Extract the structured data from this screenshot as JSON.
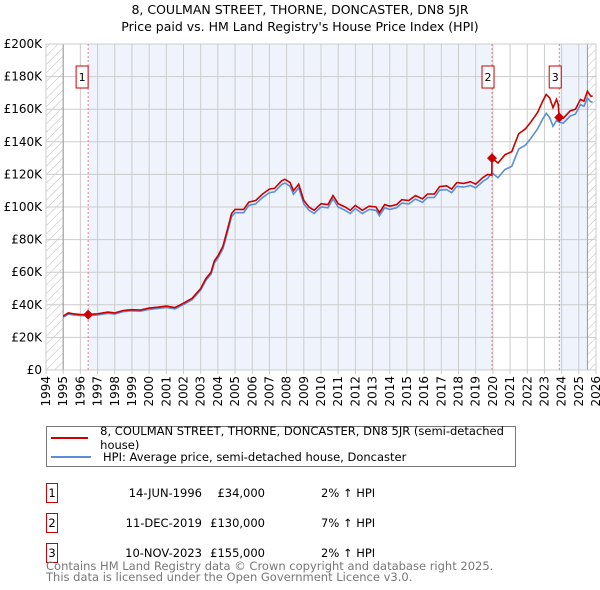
{
  "chart_data": {
    "type": "line",
    "title": "8, COULMAN STREET, THORNE, DONCASTER, DN8 5JR",
    "subtitle": "Price paid vs. HM Land Registry's House Price Index (HPI)",
    "xlim": [
      1994,
      2026
    ],
    "ylim": [
      0,
      200000
    ],
    "x_ticks": [
      "1994",
      "1995",
      "1996",
      "1997",
      "1998",
      "1999",
      "2000",
      "2001",
      "2002",
      "2003",
      "2004",
      "2005",
      "2006",
      "2007",
      "2008",
      "2009",
      "2010",
      "2011",
      "2012",
      "2013",
      "2014",
      "2015",
      "2016",
      "2017",
      "2018",
      "2019",
      "2020",
      "2021",
      "2022",
      "2023",
      "2024",
      "2025",
      "2026"
    ],
    "y_ticks": [
      {
        "v": 0,
        "label": "£0"
      },
      {
        "v": 20000,
        "label": "£20K"
      },
      {
        "v": 40000,
        "label": "£40K"
      },
      {
        "v": 60000,
        "label": "£60K"
      },
      {
        "v": 80000,
        "label": "£80K"
      },
      {
        "v": 100000,
        "label": "£100K"
      },
      {
        "v": 120000,
        "label": "£120K"
      },
      {
        "v": 140000,
        "label": "£140K"
      },
      {
        "v": 160000,
        "label": "£160K"
      },
      {
        "v": 180000,
        "label": "£180K"
      },
      {
        "v": 200000,
        "label": "£200K"
      }
    ],
    "grid": true,
    "series": [
      {
        "name": "8, COULMAN STREET, THORNE, DONCASTER, DN8 5JR (semi-detached house)",
        "color": "#cc0000",
        "points": [
          [
            1995,
            33000
          ],
          [
            1995.3,
            35000
          ],
          [
            1995.6,
            34500
          ],
          [
            1996,
            34000
          ],
          [
            1996.45,
            34000
          ],
          [
            1997,
            34500
          ],
          [
            1997.6,
            35500
          ],
          [
            1998,
            35000
          ],
          [
            1998.5,
            36500
          ],
          [
            1999,
            37000
          ],
          [
            1999.5,
            36800
          ],
          [
            2000,
            38000
          ],
          [
            2000.5,
            38500
          ],
          [
            2001,
            39200
          ],
          [
            2001.5,
            38300
          ],
          [
            2002,
            41000
          ],
          [
            2002.5,
            44000
          ],
          [
            2003,
            50000
          ],
          [
            2003.3,
            56000
          ],
          [
            2003.6,
            60000
          ],
          [
            2003.8,
            67000
          ],
          [
            2004,
            70000
          ],
          [
            2004.3,
            76000
          ],
          [
            2004.6,
            88000
          ],
          [
            2004.8,
            96000
          ],
          [
            2005,
            98500
          ],
          [
            2005.5,
            98500
          ],
          [
            2005.8,
            103000
          ],
          [
            2006.2,
            104000
          ],
          [
            2006.6,
            108000
          ],
          [
            2007,
            111000
          ],
          [
            2007.3,
            111500
          ],
          [
            2007.7,
            116000
          ],
          [
            2007.9,
            117000
          ],
          [
            2008.2,
            115000
          ],
          [
            2008.4,
            110000
          ],
          [
            2008.7,
            114000
          ],
          [
            2009,
            104000
          ],
          [
            2009.3,
            100000
          ],
          [
            2009.6,
            98000
          ],
          [
            2010,
            102000
          ],
          [
            2010.4,
            101500
          ],
          [
            2010.7,
            107000
          ],
          [
            2011,
            102000
          ],
          [
            2011.4,
            100000
          ],
          [
            2011.7,
            98000
          ],
          [
            2012,
            101000
          ],
          [
            2012.4,
            98000
          ],
          [
            2012.8,
            100500
          ],
          [
            2013.2,
            100000
          ],
          [
            2013.4,
            96500
          ],
          [
            2013.7,
            101500
          ],
          [
            2014,
            100500
          ],
          [
            2014.4,
            101500
          ],
          [
            2014.7,
            104500
          ],
          [
            2015.1,
            104000
          ],
          [
            2015.5,
            107000
          ],
          [
            2015.9,
            105000
          ],
          [
            2016.2,
            108000
          ],
          [
            2016.6,
            108000
          ],
          [
            2016.9,
            112500
          ],
          [
            2017.3,
            113000
          ],
          [
            2017.6,
            111000
          ],
          [
            2017.9,
            115000
          ],
          [
            2018.3,
            114500
          ],
          [
            2018.7,
            115500
          ],
          [
            2019,
            114000
          ],
          [
            2019.4,
            118000
          ],
          [
            2019.7,
            120000
          ],
          [
            2019.94,
            119500
          ],
          [
            2019.95,
            130000
          ],
          [
            2020.3,
            127000
          ],
          [
            2020.7,
            132000
          ],
          [
            2021.1,
            134000
          ],
          [
            2021.5,
            145000
          ],
          [
            2021.9,
            148000
          ],
          [
            2022.2,
            152000
          ],
          [
            2022.6,
            158000
          ],
          [
            2022.9,
            165000
          ],
          [
            2023.1,
            169000
          ],
          [
            2023.3,
            167000
          ],
          [
            2023.5,
            161000
          ],
          [
            2023.7,
            166000
          ],
          [
            2023.8,
            163000
          ],
          [
            2023.86,
            155000
          ],
          [
            2024.1,
            154500
          ],
          [
            2024.5,
            159000
          ],
          [
            2024.8,
            160000
          ],
          [
            2025.1,
            166000
          ],
          [
            2025.3,
            165000
          ],
          [
            2025.5,
            171000
          ],
          [
            2025.7,
            168000
          ],
          [
            2025.8,
            168000
          ]
        ]
      },
      {
        "name": "HPI: Average price, semi-detached house, Doncaster",
        "color": "#5b8fd6",
        "points": [
          [
            1995,
            32400
          ],
          [
            1995.3,
            34300
          ],
          [
            1995.6,
            33800
          ],
          [
            1996,
            33400
          ],
          [
            1996.45,
            33300
          ],
          [
            1997,
            33800
          ],
          [
            1997.6,
            34800
          ],
          [
            1998,
            34300
          ],
          [
            1998.5,
            35800
          ],
          [
            1999,
            36300
          ],
          [
            1999.5,
            36100
          ],
          [
            2000,
            37200
          ],
          [
            2000.5,
            37700
          ],
          [
            2001,
            38400
          ],
          [
            2001.5,
            37500
          ],
          [
            2002,
            40200
          ],
          [
            2002.5,
            43100
          ],
          [
            2003,
            49000
          ],
          [
            2003.3,
            54900
          ],
          [
            2003.6,
            58800
          ],
          [
            2003.8,
            65700
          ],
          [
            2004,
            68600
          ],
          [
            2004.3,
            74500
          ],
          [
            2004.6,
            86200
          ],
          [
            2004.8,
            94100
          ],
          [
            2005,
            96500
          ],
          [
            2005.5,
            96500
          ],
          [
            2005.8,
            101000
          ],
          [
            2006.2,
            101900
          ],
          [
            2006.6,
            105800
          ],
          [
            2007,
            108800
          ],
          [
            2007.3,
            109300
          ],
          [
            2007.7,
            113700
          ],
          [
            2007.9,
            114700
          ],
          [
            2008.2,
            112700
          ],
          [
            2008.4,
            107800
          ],
          [
            2008.7,
            111700
          ],
          [
            2009,
            101900
          ],
          [
            2009.3,
            98000
          ],
          [
            2009.6,
            96000
          ],
          [
            2010,
            100000
          ],
          [
            2010.4,
            99500
          ],
          [
            2010.7,
            104900
          ],
          [
            2011,
            100000
          ],
          [
            2011.4,
            98000
          ],
          [
            2011.7,
            96000
          ],
          [
            2012,
            99000
          ],
          [
            2012.4,
            96000
          ],
          [
            2012.8,
            98500
          ],
          [
            2013.2,
            98000
          ],
          [
            2013.4,
            94600
          ],
          [
            2013.7,
            99500
          ],
          [
            2014,
            98500
          ],
          [
            2014.4,
            99500
          ],
          [
            2014.7,
            102400
          ],
          [
            2015.1,
            101900
          ],
          [
            2015.5,
            104900
          ],
          [
            2015.9,
            102900
          ],
          [
            2016.2,
            105800
          ],
          [
            2016.6,
            105800
          ],
          [
            2016.9,
            110300
          ],
          [
            2017.3,
            110700
          ],
          [
            2017.6,
            108800
          ],
          [
            2017.9,
            112700
          ],
          [
            2018.3,
            112200
          ],
          [
            2018.7,
            113200
          ],
          [
            2019,
            111700
          ],
          [
            2019.4,
            115600
          ],
          [
            2019.7,
            117600
          ],
          [
            2019.95,
            121000
          ],
          [
            2020.3,
            118000
          ],
          [
            2020.7,
            123000
          ],
          [
            2021.1,
            125000
          ],
          [
            2021.5,
            135500
          ],
          [
            2021.9,
            138000
          ],
          [
            2022.2,
            142000
          ],
          [
            2022.6,
            148000
          ],
          [
            2022.9,
            154000
          ],
          [
            2023.1,
            157500
          ],
          [
            2023.3,
            155000
          ],
          [
            2023.5,
            149500
          ],
          [
            2023.7,
            153000
          ],
          [
            2023.86,
            152000
          ],
          [
            2024.1,
            151500
          ],
          [
            2024.5,
            155800
          ],
          [
            2024.8,
            157000
          ],
          [
            2025.1,
            162800
          ],
          [
            2025.3,
            161800
          ],
          [
            2025.5,
            167000
          ],
          [
            2025.7,
            164500
          ],
          [
            2025.8,
            164500
          ]
        ]
      }
    ],
    "sales": [
      {
        "n": "1",
        "x": 1996.45,
        "price": 34000,
        "date": "14-JUN-1996",
        "price_label": "£34,000",
        "hpi": "2% ↑ HPI"
      },
      {
        "n": "2",
        "x": 2019.95,
        "price": 130000,
        "date": "11-DEC-2019",
        "price_label": "£130,000",
        "hpi": "7% ↑ HPI"
      },
      {
        "n": "3",
        "x": 2023.86,
        "price": 155000,
        "date": "10-NOV-2023",
        "price_label": "£155,000",
        "hpi": "2% ↑ HPI"
      }
    ],
    "legend_placement": "below"
  },
  "footer": {
    "line1": "Contains HM Land Registry data © Crown copyright and database right 2025.",
    "line2": "This data is licensed under the Open Government Licence v3.0."
  }
}
